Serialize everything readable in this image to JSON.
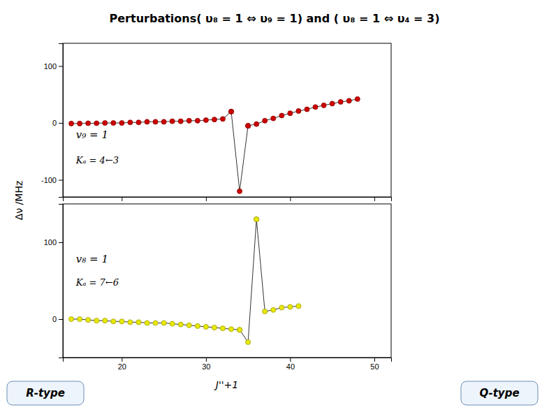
{
  "chart_data": [
    {
      "type": "line",
      "title": "Perturbations( υ₈ = 1 ⇔ υ₉ = 1) and ( υ₈ = 1 ⇔ υ₄ = 3)",
      "ylabel": "Δν /MHz",
      "annotations": [
        "v₉ = 1",
        "Kₐ = 4←3"
      ],
      "xlim": [
        13,
        52
      ],
      "xticks": [
        20,
        30,
        40,
        50
      ],
      "ylim": [
        -130,
        140
      ],
      "yticks": [
        -100,
        0,
        100
      ],
      "tick_labels": "y",
      "marker": "circle",
      "series": [
        {
          "color": "#cc0000",
          "x": [
            14,
            15,
            16,
            17,
            18,
            19,
            20,
            21,
            22,
            23,
            24,
            25,
            26,
            27,
            28,
            29,
            30,
            31,
            32,
            33,
            33,
            34,
            35,
            35,
            36,
            37,
            38,
            39,
            40,
            41,
            42,
            43,
            44,
            45,
            46,
            47,
            48
          ],
          "values": [
            -1,
            -1,
            -0.5,
            -0.5,
            0,
            0,
            0,
            1,
            1,
            2,
            2,
            2,
            3,
            3,
            4,
            4,
            5,
            6,
            7,
            20,
            20,
            -120,
            -5,
            -5,
            -2,
            4,
            8,
            13,
            17,
            21,
            24,
            28,
            31,
            34,
            37,
            39,
            42
          ]
        }
      ]
    },
    {
      "type": "line",
      "xlabel": "J''+1",
      "annotations": [
        "v₈ = 1",
        "Kₐ = 7←6"
      ],
      "buttons": [
        "R-type",
        "Q-type"
      ],
      "xlim": [
        13,
        52
      ],
      "xticks": [
        20,
        30,
        40,
        50
      ],
      "ylim": [
        -50,
        150
      ],
      "yticks": [
        0,
        100
      ],
      "marker": "circle",
      "series": [
        {
          "color": "#e8e800",
          "x": [
            14,
            15,
            16,
            17,
            18,
            19,
            20,
            21,
            22,
            23,
            24,
            25,
            26,
            27,
            28,
            29,
            30,
            31,
            32,
            33,
            34,
            34,
            35,
            36,
            36,
            37,
            38,
            39,
            40,
            41
          ],
          "values": [
            0,
            0,
            -1,
            -2,
            -2,
            -3,
            -3,
            -4,
            -4,
            -5,
            -5,
            -5,
            -6,
            -7,
            -8,
            -9,
            -10,
            -11,
            -12,
            -13,
            -14,
            -14,
            -30,
            130,
            130,
            10,
            12,
            15,
            16,
            17
          ]
        }
      ]
    }
  ]
}
